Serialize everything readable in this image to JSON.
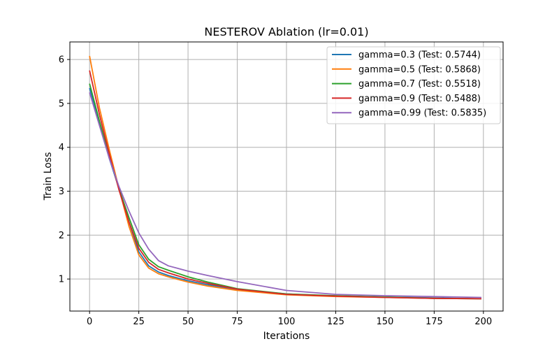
{
  "chart_data": {
    "type": "line",
    "title": "NESTEROV Ablation (lr=0.01)",
    "xlabel": "Iterations",
    "ylabel": "Train Loss",
    "xlim": [
      -10,
      210
    ],
    "ylim": [
      0.27,
      6.4
    ],
    "xticks": [
      0,
      25,
      50,
      75,
      100,
      125,
      150,
      175,
      200
    ],
    "yticks": [
      1,
      2,
      3,
      4,
      5,
      6
    ],
    "grid": true,
    "legend_position": "top-right",
    "series": [
      {
        "name": "gamma=0.3 (Test: 0.5744)",
        "color": "#1f77b4",
        "x": [
          0,
          5,
          10,
          15,
          20,
          25,
          30,
          35,
          40,
          50,
          60,
          75,
          100,
          125,
          150,
          175,
          199
        ],
        "y": [
          5.35,
          4.55,
          3.75,
          3.05,
          2.3,
          1.62,
          1.3,
          1.16,
          1.08,
          0.96,
          0.87,
          0.76,
          0.66,
          0.61,
          0.59,
          0.57,
          0.55
        ]
      },
      {
        "name": "gamma=0.5 (Test: 0.5868)",
        "color": "#ff7f0e",
        "x": [
          0,
          5,
          10,
          15,
          20,
          25,
          30,
          35,
          40,
          50,
          60,
          75,
          100,
          125,
          150,
          175,
          199
        ],
        "y": [
          6.08,
          4.9,
          3.95,
          3.05,
          2.2,
          1.55,
          1.25,
          1.12,
          1.05,
          0.93,
          0.84,
          0.74,
          0.64,
          0.6,
          0.58,
          0.56,
          0.55
        ]
      },
      {
        "name": "gamma=0.7 (Test: 0.5518)",
        "color": "#2ca02c",
        "x": [
          0,
          5,
          10,
          15,
          20,
          25,
          30,
          35,
          40,
          50,
          60,
          75,
          100,
          125,
          150,
          175,
          199
        ],
        "y": [
          5.45,
          4.6,
          3.8,
          3.05,
          2.4,
          1.78,
          1.45,
          1.28,
          1.2,
          1.05,
          0.93,
          0.78,
          0.66,
          0.62,
          0.59,
          0.56,
          0.55
        ]
      },
      {
        "name": "gamma=0.9 (Test: 0.5488)",
        "color": "#d62728",
        "x": [
          0,
          5,
          10,
          15,
          20,
          25,
          30,
          35,
          40,
          50,
          60,
          75,
          100,
          125,
          150,
          175,
          199
        ],
        "y": [
          5.75,
          4.75,
          3.85,
          3.02,
          2.3,
          1.7,
          1.38,
          1.22,
          1.14,
          1.0,
          0.9,
          0.77,
          0.65,
          0.61,
          0.58,
          0.56,
          0.55
        ]
      },
      {
        "name": "gamma=0.99 (Test: 0.5835)",
        "color": "#9467bd",
        "x": [
          0,
          5,
          10,
          15,
          20,
          25,
          30,
          35,
          40,
          50,
          60,
          75,
          100,
          125,
          150,
          175,
          199
        ],
        "y": [
          5.25,
          4.5,
          3.75,
          3.1,
          2.55,
          2.05,
          1.68,
          1.42,
          1.3,
          1.18,
          1.08,
          0.94,
          0.74,
          0.65,
          0.62,
          0.6,
          0.58
        ]
      }
    ]
  }
}
